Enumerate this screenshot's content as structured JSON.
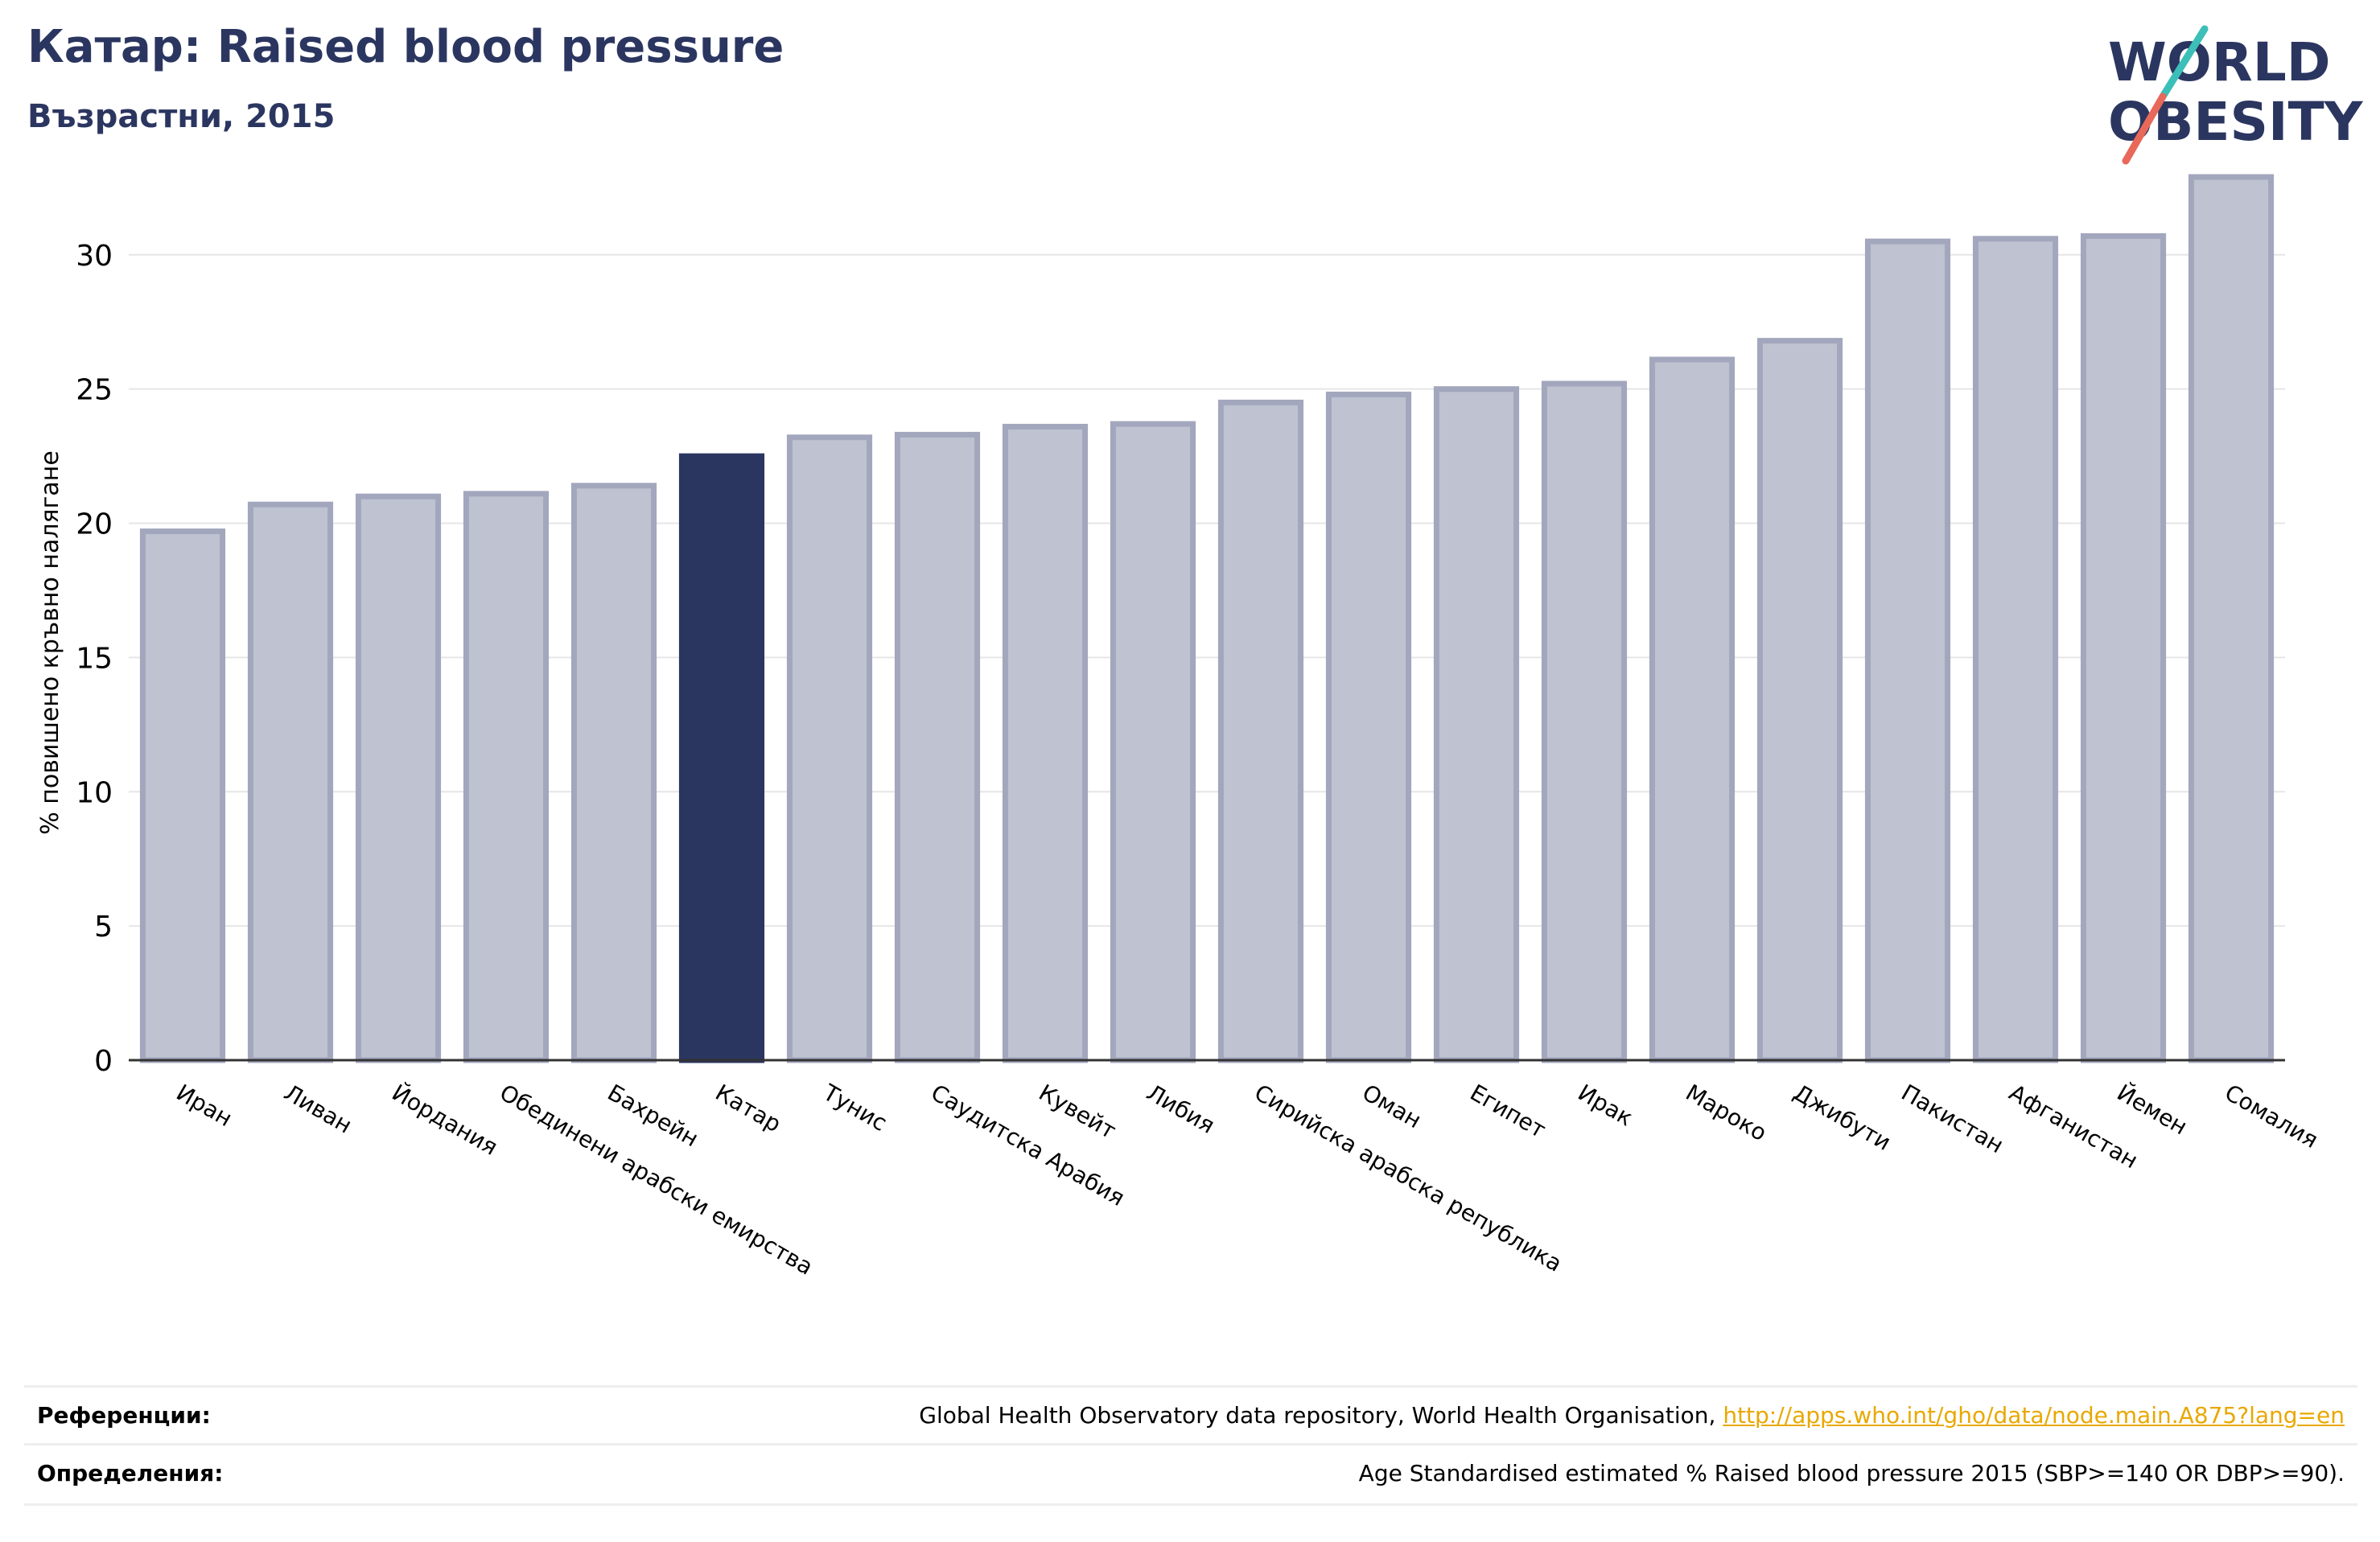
{
  "header": {
    "title": "Катар: Raised blood pressure",
    "subtitle": "Възрастни, 2015"
  },
  "logo": {
    "line1": "WORLD",
    "line2": "OBESITY"
  },
  "colors": {
    "highlight": "#2b3660",
    "bar_fill": "#bfc2d0",
    "bar_stroke": "#a3a7bd",
    "grid": "#e6e6e6",
    "text_dark": "#2b3660",
    "link": "#e8a800",
    "logo_teal": "#3bbfb8",
    "logo_red": "#e8685a"
  },
  "chart_data": {
    "type": "bar",
    "ylabel": "% повишено кръвно налягане",
    "ylim": [
      0,
      33.5
    ],
    "yticks": [
      0,
      5,
      10,
      15,
      20,
      25,
      30
    ],
    "grid": true,
    "highlight": "Катар",
    "categories": [
      "Иран",
      "Ливан",
      "Йордания",
      "Обединени арабски емирства",
      "Бахрейн",
      "Катар",
      "Тунис",
      "Саудитска Арабия",
      "Кувейт",
      "Либия",
      "Сирийска арабска република",
      "Оман",
      "Египет",
      "Ирак",
      "Мароко",
      "Джибути",
      "Пакистан",
      "Афганистан",
      "Йемен",
      "Сомалия"
    ],
    "values": [
      19.7,
      20.7,
      21.0,
      21.1,
      21.4,
      22.5,
      23.2,
      23.3,
      23.6,
      23.7,
      24.5,
      24.8,
      25.0,
      25.2,
      26.1,
      26.8,
      30.5,
      30.6,
      30.7,
      32.9
    ]
  },
  "footer": {
    "references_label": "Референции:",
    "references_text": "Global Health Observatory data repository, World Health Organisation, ",
    "references_link": "http://apps.who.int/gho/data/node.main.A875?lang=en",
    "definitions_label": "Определения:",
    "definitions_text": "Age Standardised estimated % Raised blood pressure 2015 (SBP>=140 OR DBP>=90)."
  }
}
